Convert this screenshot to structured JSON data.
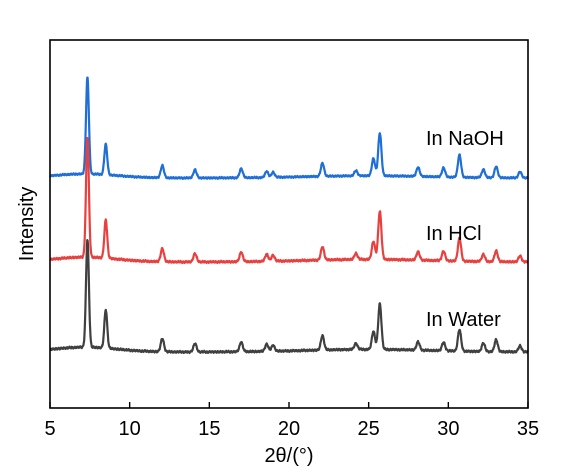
{
  "chart_data": {
    "type": "line",
    "xlabel": "2θ/(°)",
    "ylabel": "Intensity",
    "xlim": [
      5,
      35
    ],
    "xticks": [
      5,
      10,
      15,
      20,
      25,
      30,
      35
    ],
    "grid": false,
    "series": [
      {
        "name": "In NaOH",
        "color": "#1f6fd6",
        "peaks": [
          [
            7.35,
            95
          ],
          [
            8.5,
            30
          ],
          [
            12.05,
            12
          ],
          [
            14.1,
            8
          ],
          [
            17.0,
            9
          ],
          [
            18.6,
            6
          ],
          [
            19.0,
            5
          ],
          [
            22.1,
            13
          ],
          [
            24.2,
            5
          ],
          [
            25.3,
            17
          ],
          [
            25.7,
            42
          ],
          [
            28.1,
            9
          ],
          [
            29.7,
            9
          ],
          [
            30.7,
            22
          ],
          [
            32.2,
            8
          ],
          [
            33.0,
            11
          ],
          [
            34.5,
            6
          ]
        ]
      },
      {
        "name": "In HCl",
        "color": "#e8403f",
        "peaks": [
          [
            7.35,
            100
          ],
          [
            8.5,
            32
          ],
          [
            12.05,
            11
          ],
          [
            14.1,
            7
          ],
          [
            17.0,
            8
          ],
          [
            18.6,
            6
          ],
          [
            19.0,
            5
          ],
          [
            22.1,
            11
          ],
          [
            24.2,
            5
          ],
          [
            25.3,
            15
          ],
          [
            25.7,
            40
          ],
          [
            28.1,
            7
          ],
          [
            29.7,
            8
          ],
          [
            30.7,
            19
          ],
          [
            32.2,
            6
          ],
          [
            33.0,
            9
          ],
          [
            34.5,
            5
          ]
        ]
      },
      {
        "name": "In Water",
        "color": "#404040",
        "peaks": [
          [
            7.35,
            90
          ],
          [
            8.5,
            32
          ],
          [
            12.05,
            11
          ],
          [
            14.1,
            7
          ],
          [
            17.0,
            8
          ],
          [
            18.6,
            6
          ],
          [
            19.0,
            5
          ],
          [
            22.1,
            12
          ],
          [
            24.2,
            5
          ],
          [
            25.3,
            15
          ],
          [
            25.7,
            38
          ],
          [
            28.1,
            7
          ],
          [
            29.7,
            7
          ],
          [
            30.7,
            18
          ],
          [
            32.2,
            7
          ],
          [
            33.0,
            10
          ],
          [
            34.5,
            5
          ]
        ]
      }
    ]
  }
}
